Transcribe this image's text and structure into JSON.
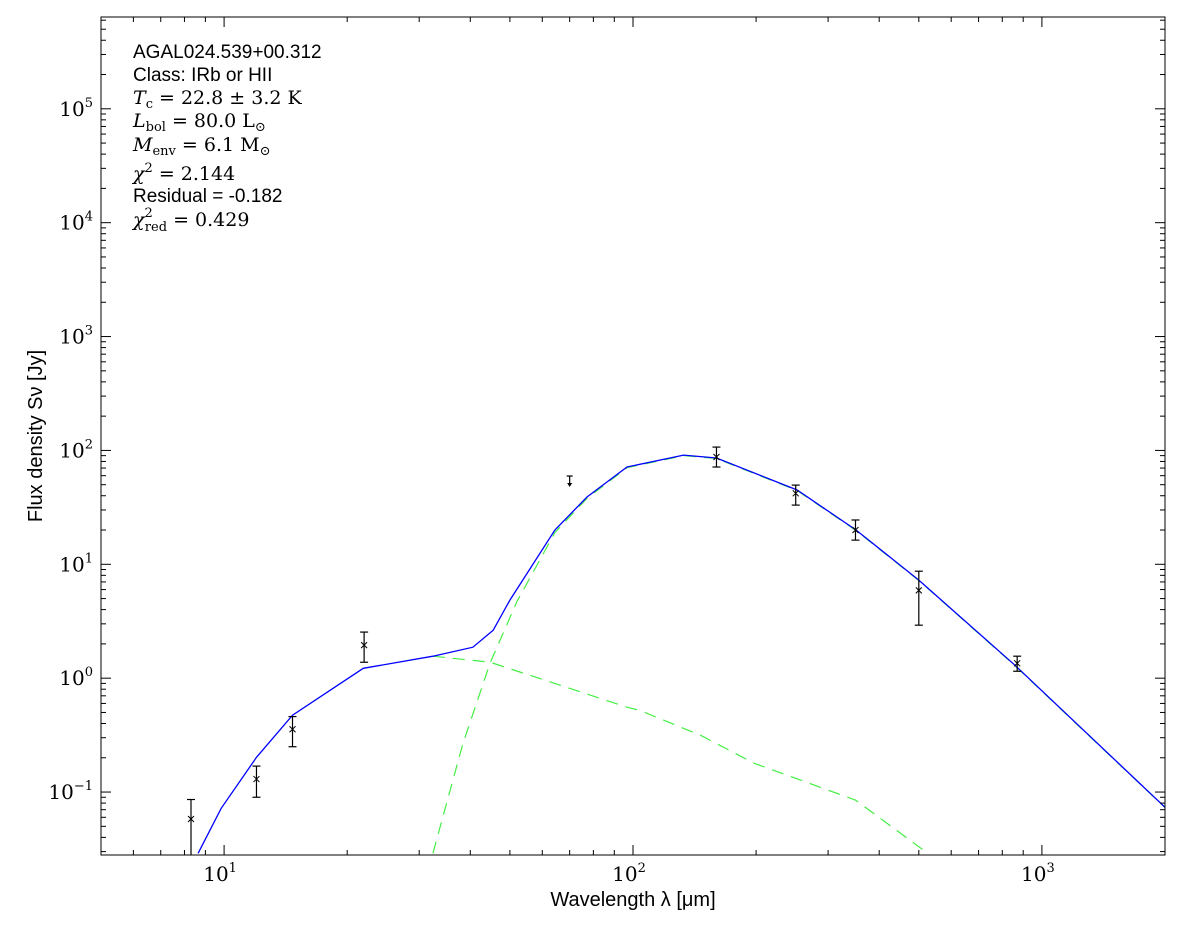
{
  "chart_data": {
    "type": "scatter",
    "xscale": "log",
    "yscale": "log",
    "xlim": [
      5,
      2000
    ],
    "ylim": [
      0.028,
      640000
    ],
    "grid": false,
    "xlabel": "Wavelength λ [μm]",
    "ylabel": "Flux density Sν [Jy]",
    "x_ticks": [
      {
        "value": 10,
        "base": "10",
        "exp": "1"
      },
      {
        "value": 100,
        "base": "10",
        "exp": "2"
      },
      {
        "value": 1000,
        "base": "10",
        "exp": "3"
      }
    ],
    "y_ticks": [
      {
        "value": 0.1,
        "base": "10",
        "exp": "−1"
      },
      {
        "value": 1,
        "base": "10",
        "exp": "0"
      },
      {
        "value": 10,
        "base": "10",
        "exp": "1"
      },
      {
        "value": 100,
        "base": "10",
        "exp": "2"
      },
      {
        "value": 1000,
        "base": "10",
        "exp": "3"
      },
      {
        "value": 10000,
        "base": "10",
        "exp": "4"
      },
      {
        "value": 100000,
        "base": "10",
        "exp": "5"
      }
    ],
    "annotation": {
      "source": "AGAL024.539+00.312",
      "class": "Class: IRb or HII",
      "tc": {
        "sym": "T",
        "sub": "c",
        "rest": " = 22.8 ± 3.2 K"
      },
      "lbol": {
        "sym": "L",
        "sub": "bol",
        "rest": " = 80.0 L",
        "sun": "⊙"
      },
      "menv": {
        "sym": "M",
        "sub": "env",
        "rest": " = 6.1 M",
        "sun": "⊙"
      },
      "chi2": {
        "sym": "χ",
        "sup": "2",
        "rest": " = 2.144"
      },
      "residual": "Residual = -0.182",
      "chi2red": {
        "sym": "χ",
        "sup": "2",
        "sub": "red",
        "rest": " = 0.429"
      }
    },
    "points": [
      {
        "x": 8.3,
        "y": 0.058,
        "ylo": 0.0278,
        "yhi": 0.086
      },
      {
        "x": 12.0,
        "y": 0.13,
        "ylo": 0.09,
        "yhi": 0.169
      },
      {
        "x": 14.7,
        "y": 0.356,
        "ylo": 0.25,
        "yhi": 0.46
      },
      {
        "x": 22.0,
        "y": 1.95,
        "ylo": 1.38,
        "yhi": 2.54
      },
      {
        "x": 160,
        "y": 87.5,
        "ylo": 71.5,
        "yhi": 107
      },
      {
        "x": 250,
        "y": 42,
        "ylo": 33.1,
        "yhi": 49.6
      },
      {
        "x": 350,
        "y": 20,
        "ylo": 16.3,
        "yhi": 24.5
      },
      {
        "x": 500,
        "y": 5.9,
        "ylo": 2.92,
        "yhi": 8.7
      },
      {
        "x": 870,
        "y": 1.35,
        "ylo": 1.15,
        "yhi": 1.56
      }
    ],
    "upper_limits": [
      {
        "x": 70,
        "y": 59.6
      }
    ],
    "series": [
      {
        "style": "solid",
        "color": "#0000ff",
        "x": [
          8.64,
          9.84,
          12.0,
          14.7,
          21.9,
          32.4,
          40.6,
          45.5,
          50.0,
          64.4,
          77.2,
          96.7,
          133,
          160,
          252,
          351,
          500,
          859,
          2000
        ],
        "y": [
          0.029,
          0.072,
          0.202,
          0.473,
          1.22,
          1.56,
          1.87,
          2.64,
          4.85,
          20,
          39,
          71.5,
          91,
          85.8,
          44.9,
          20,
          7.26,
          1.3,
          0.0735
        ]
      },
      {
        "style": "dashed",
        "color": "#44ee44",
        "x": [
          32.4,
          38.4,
          44.7,
          52,
          64.4,
          77.2,
          96.7,
          133,
          160,
          252,
          351,
          500,
          859,
          2000
        ],
        "y": [
          0.029,
          0.268,
          1.35,
          4.7,
          19,
          38,
          70.5,
          90,
          85,
          44.5,
          19.8,
          7.2,
          1.29,
          0.073
        ]
      },
      {
        "style": "dashed",
        "color": "#44ee44",
        "x": [
          32.4,
          44.7,
          96.7,
          104,
          146,
          198,
          350,
          514,
          530
        ],
        "y": [
          1.56,
          1.38,
          0.556,
          0.52,
          0.316,
          0.179,
          0.085,
          0.0308,
          0.0278
        ]
      }
    ]
  }
}
